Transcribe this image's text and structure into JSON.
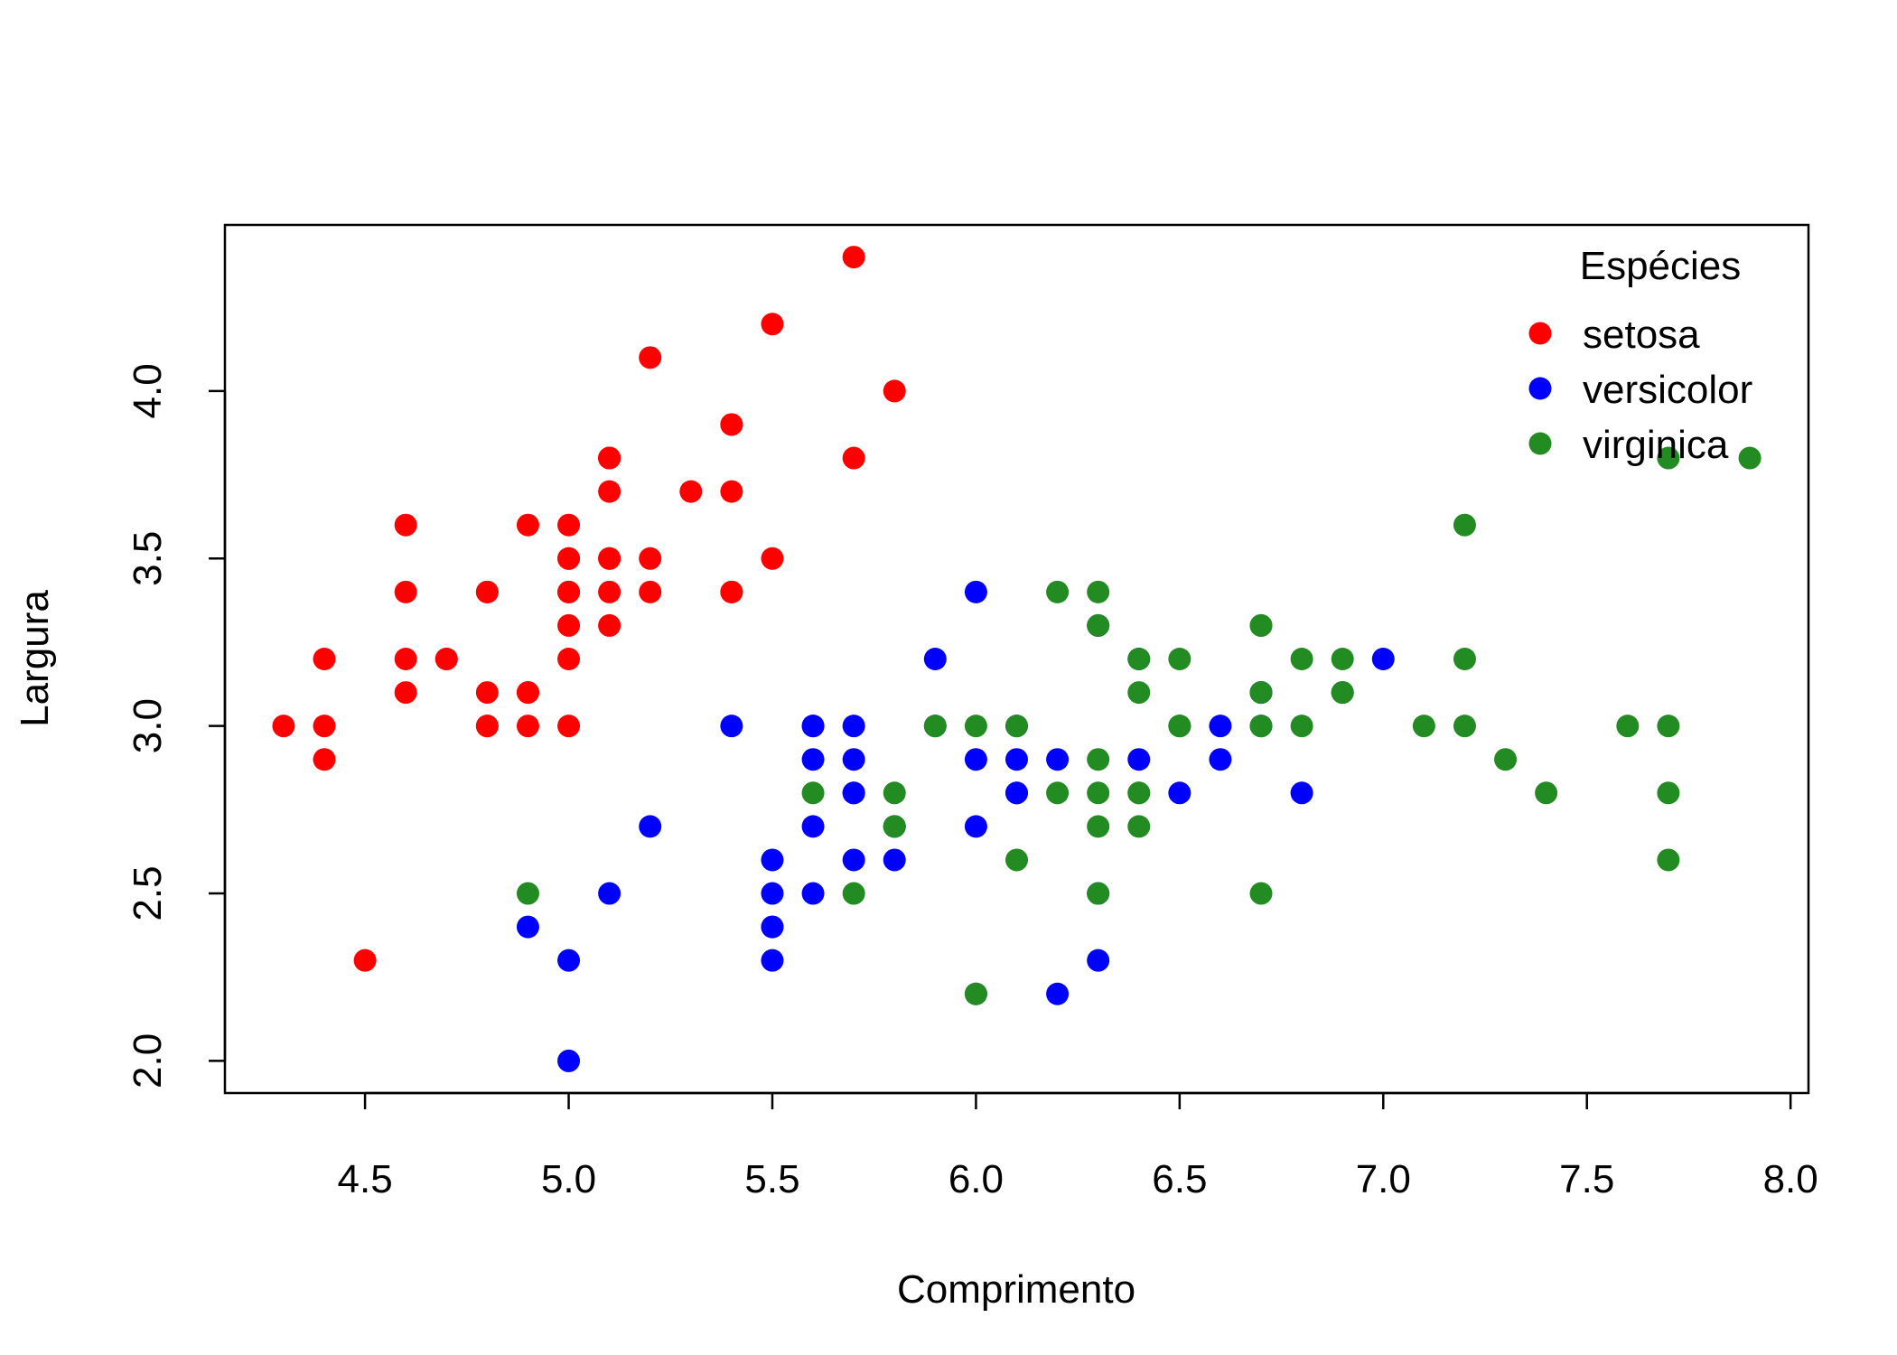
{
  "chart_data": {
    "type": "scatter",
    "title": "",
    "xlabel": "Comprimento",
    "ylabel": "Largura",
    "xlim": [
      4.3,
      7.9
    ],
    "ylim": [
      2.0,
      4.4
    ],
    "xticks": [
      "4.5",
      "5.0",
      "5.5",
      "6.0",
      "6.5",
      "7.0",
      "7.5",
      "8.0"
    ],
    "yticks": [
      "2.0",
      "2.5",
      "3.0",
      "3.5",
      "4.0"
    ],
    "grid": false,
    "legend": {
      "title": "Espécies",
      "position": "top-right"
    },
    "series": [
      {
        "name": "setosa",
        "color": "#ff0000",
        "points": [
          [
            5.1,
            3.5
          ],
          [
            4.9,
            3.0
          ],
          [
            4.7,
            3.2
          ],
          [
            4.6,
            3.1
          ],
          [
            5.0,
            3.6
          ],
          [
            5.4,
            3.9
          ],
          [
            4.6,
            3.4
          ],
          [
            5.0,
            3.4
          ],
          [
            4.4,
            2.9
          ],
          [
            4.9,
            3.1
          ],
          [
            5.4,
            3.7
          ],
          [
            4.8,
            3.4
          ],
          [
            4.8,
            3.0
          ],
          [
            4.3,
            3.0
          ],
          [
            5.8,
            4.0
          ],
          [
            5.7,
            4.4
          ],
          [
            5.4,
            3.9
          ],
          [
            5.1,
            3.5
          ],
          [
            5.7,
            3.8
          ],
          [
            5.1,
            3.8
          ],
          [
            5.4,
            3.4
          ],
          [
            5.1,
            3.7
          ],
          [
            4.6,
            3.6
          ],
          [
            5.1,
            3.3
          ],
          [
            4.8,
            3.4
          ],
          [
            5.0,
            3.0
          ],
          [
            5.0,
            3.4
          ],
          [
            5.2,
            3.5
          ],
          [
            5.2,
            3.4
          ],
          [
            4.7,
            3.2
          ],
          [
            4.8,
            3.1
          ],
          [
            5.4,
            3.4
          ],
          [
            5.2,
            4.1
          ],
          [
            5.5,
            4.2
          ],
          [
            4.9,
            3.1
          ],
          [
            5.0,
            3.2
          ],
          [
            5.5,
            3.5
          ],
          [
            4.9,
            3.6
          ],
          [
            4.4,
            3.0
          ],
          [
            5.1,
            3.4
          ],
          [
            5.0,
            3.5
          ],
          [
            4.5,
            2.3
          ],
          [
            4.4,
            3.2
          ],
          [
            5.0,
            3.5
          ],
          [
            5.1,
            3.8
          ],
          [
            4.8,
            3.0
          ],
          [
            5.1,
            3.8
          ],
          [
            4.6,
            3.2
          ],
          [
            5.3,
            3.7
          ],
          [
            5.0,
            3.3
          ]
        ]
      },
      {
        "name": "versicolor",
        "color": "#0000ff",
        "points": [
          [
            7.0,
            3.2
          ],
          [
            6.4,
            3.2
          ],
          [
            6.9,
            3.1
          ],
          [
            5.5,
            2.3
          ],
          [
            6.5,
            2.8
          ],
          [
            5.7,
            2.8
          ],
          [
            6.3,
            3.3
          ],
          [
            4.9,
            2.4
          ],
          [
            6.6,
            2.9
          ],
          [
            5.2,
            2.7
          ],
          [
            5.0,
            2.0
          ],
          [
            5.9,
            3.0
          ],
          [
            6.0,
            2.2
          ],
          [
            6.1,
            2.9
          ],
          [
            5.6,
            2.9
          ],
          [
            6.7,
            3.1
          ],
          [
            5.6,
            3.0
          ],
          [
            5.8,
            2.7
          ],
          [
            6.2,
            2.2
          ],
          [
            5.6,
            2.5
          ],
          [
            5.9,
            3.2
          ],
          [
            6.1,
            2.8
          ],
          [
            6.3,
            2.5
          ],
          [
            6.1,
            2.8
          ],
          [
            6.4,
            2.9
          ],
          [
            6.6,
            3.0
          ],
          [
            6.8,
            2.8
          ],
          [
            6.7,
            3.0
          ],
          [
            6.0,
            2.9
          ],
          [
            5.7,
            2.6
          ],
          [
            5.5,
            2.4
          ],
          [
            5.5,
            2.4
          ],
          [
            5.8,
            2.7
          ],
          [
            6.0,
            2.7
          ],
          [
            5.4,
            3.0
          ],
          [
            6.0,
            3.4
          ],
          [
            6.7,
            3.1
          ],
          [
            6.3,
            2.3
          ],
          [
            5.6,
            3.0
          ],
          [
            5.5,
            2.5
          ],
          [
            5.5,
            2.6
          ],
          [
            6.1,
            3.0
          ],
          [
            5.8,
            2.6
          ],
          [
            5.0,
            2.3
          ],
          [
            5.6,
            2.7
          ],
          [
            5.7,
            3.0
          ],
          [
            5.7,
            2.9
          ],
          [
            6.2,
            2.9
          ],
          [
            5.1,
            2.5
          ],
          [
            5.7,
            2.8
          ]
        ]
      },
      {
        "name": "virginica",
        "color": "#228b22",
        "points": [
          [
            6.3,
            3.3
          ],
          [
            5.8,
            2.7
          ],
          [
            7.1,
            3.0
          ],
          [
            6.3,
            2.9
          ],
          [
            6.5,
            3.0
          ],
          [
            7.6,
            3.0
          ],
          [
            4.9,
            2.5
          ],
          [
            7.3,
            2.9
          ],
          [
            6.7,
            2.5
          ],
          [
            7.2,
            3.6
          ],
          [
            6.5,
            3.2
          ],
          [
            6.4,
            2.7
          ],
          [
            6.8,
            3.0
          ],
          [
            5.7,
            2.5
          ],
          [
            5.8,
            2.8
          ],
          [
            6.4,
            3.2
          ],
          [
            6.5,
            3.0
          ],
          [
            7.7,
            3.8
          ],
          [
            7.7,
            2.6
          ],
          [
            6.0,
            2.2
          ],
          [
            6.9,
            3.2
          ],
          [
            5.6,
            2.8
          ],
          [
            7.7,
            2.8
          ],
          [
            6.3,
            2.7
          ],
          [
            6.7,
            3.3
          ],
          [
            7.2,
            3.2
          ],
          [
            6.2,
            2.8
          ],
          [
            6.1,
            3.0
          ],
          [
            6.4,
            2.8
          ],
          [
            7.2,
            3.0
          ],
          [
            7.4,
            2.8
          ],
          [
            7.9,
            3.8
          ],
          [
            6.4,
            2.8
          ],
          [
            6.3,
            2.8
          ],
          [
            6.1,
            2.6
          ],
          [
            7.7,
            3.0
          ],
          [
            6.3,
            3.4
          ],
          [
            6.4,
            3.1
          ],
          [
            6.0,
            3.0
          ],
          [
            6.9,
            3.1
          ],
          [
            6.7,
            3.1
          ],
          [
            6.9,
            3.1
          ],
          [
            5.8,
            2.7
          ],
          [
            6.8,
            3.2
          ],
          [
            6.7,
            3.3
          ],
          [
            6.7,
            3.0
          ],
          [
            6.3,
            2.5
          ],
          [
            6.5,
            3.0
          ],
          [
            6.2,
            3.4
          ],
          [
            5.9,
            3.0
          ]
        ]
      }
    ]
  }
}
